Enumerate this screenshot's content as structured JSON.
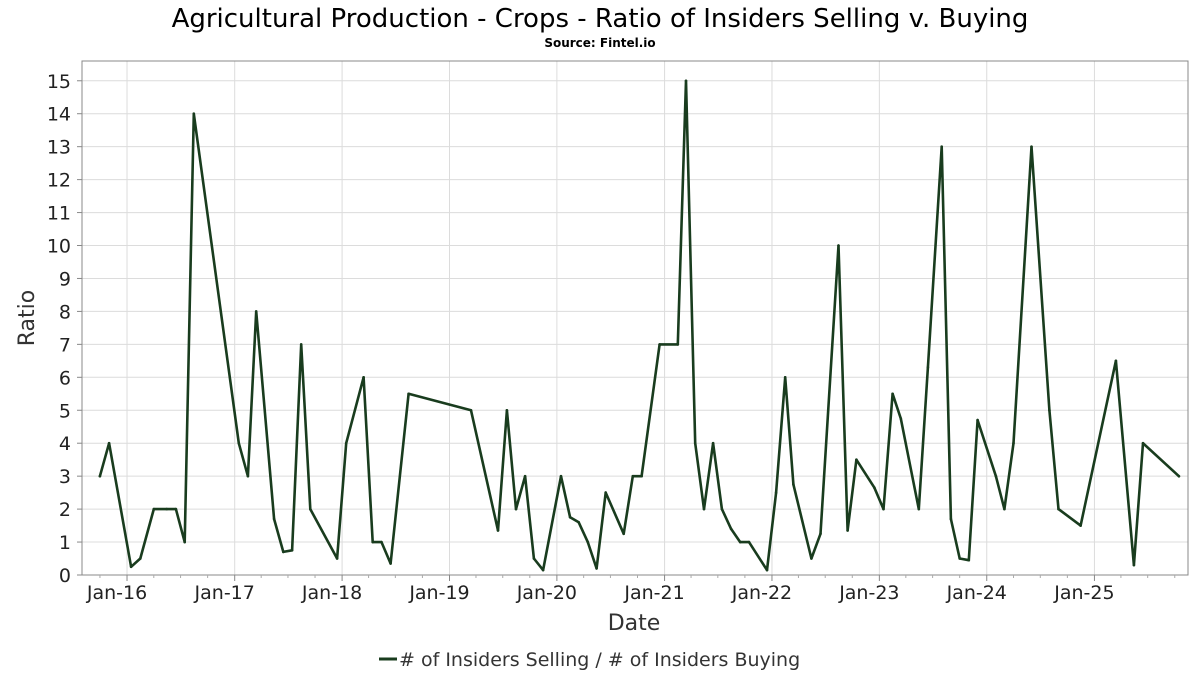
{
  "chart_data": {
    "type": "line",
    "title": "Agricultural Production - Crops - Ratio of Insiders Selling v. Buying",
    "subtitle": "Source: Fintel.io",
    "xlabel": "Date",
    "ylabel": "Ratio",
    "x_axis": {
      "type": "date",
      "range": [
        "2015-08-01",
        "2025-11-15"
      ],
      "tick_labels": [
        "Jan-16",
        "Jan-17",
        "Jan-18",
        "Jan-19",
        "Jan-20",
        "Jan-21",
        "Jan-22",
        "Jan-23",
        "Jan-24",
        "Jan-25"
      ],
      "tick_dates": [
        "2016-01-01",
        "2017-01-01",
        "2018-01-01",
        "2019-01-01",
        "2020-01-01",
        "2021-01-01",
        "2022-01-01",
        "2023-01-01",
        "2024-01-01",
        "2025-01-01"
      ]
    },
    "y_axis": {
      "range": [
        0,
        15.6
      ],
      "tick_labels": [
        "0",
        "1",
        "2",
        "3",
        "4",
        "5",
        "6",
        "7",
        "8",
        "9",
        "10",
        "11",
        "12",
        "13",
        "14",
        "15"
      ]
    },
    "grid": true,
    "legend_position": "bottom-center",
    "series": [
      {
        "name": "# of Insiders Selling / # of Insiders Buying",
        "color": "#193c1e",
        "points": [
          [
            "2015-10-01",
            3.0
          ],
          [
            "2015-11-01",
            4.0
          ],
          [
            "2016-01-15",
            0.25
          ],
          [
            "2016-02-15",
            0.5
          ],
          [
            "2016-04-01",
            2.0
          ],
          [
            "2016-05-15",
            2.0
          ],
          [
            "2016-06-15",
            2.0
          ],
          [
            "2016-07-15",
            1.0
          ],
          [
            "2016-08-15",
            14.0
          ],
          [
            "2017-01-15",
            4.0
          ],
          [
            "2017-02-15",
            3.0
          ],
          [
            "2017-03-15",
            8.0
          ],
          [
            "2017-05-15",
            1.7
          ],
          [
            "2017-06-15",
            0.7
          ],
          [
            "2017-07-15",
            0.75
          ],
          [
            "2017-08-15",
            7.0
          ],
          [
            "2017-09-15",
            2.0
          ],
          [
            "2017-12-15",
            0.5
          ],
          [
            "2018-01-15",
            4.0
          ],
          [
            "2018-03-15",
            6.0
          ],
          [
            "2018-04-15",
            1.0
          ],
          [
            "2018-05-15",
            1.0
          ],
          [
            "2018-06-15",
            0.35
          ],
          [
            "2018-08-15",
            5.5
          ],
          [
            "2019-03-15",
            5.0
          ],
          [
            "2019-06-15",
            1.35
          ],
          [
            "2019-07-15",
            5.0
          ],
          [
            "2019-08-15",
            2.0
          ],
          [
            "2019-09-15",
            3.0
          ],
          [
            "2019-10-15",
            0.5
          ],
          [
            "2019-11-15",
            0.15
          ],
          [
            "2020-01-15",
            3.0
          ],
          [
            "2020-02-15",
            1.75
          ],
          [
            "2020-03-15",
            1.6
          ],
          [
            "2020-04-15",
            1.0
          ],
          [
            "2020-05-15",
            0.2
          ],
          [
            "2020-06-15",
            2.5
          ],
          [
            "2020-08-15",
            1.25
          ],
          [
            "2020-09-15",
            3.0
          ],
          [
            "2020-10-15",
            3.0
          ],
          [
            "2020-12-15",
            7.0
          ],
          [
            "2021-02-15",
            7.0
          ],
          [
            "2021-03-15",
            15.0
          ],
          [
            "2021-04-15",
            4.0
          ],
          [
            "2021-05-15",
            2.0
          ],
          [
            "2021-06-15",
            4.0
          ],
          [
            "2021-07-15",
            2.0
          ],
          [
            "2021-08-15",
            1.4
          ],
          [
            "2021-09-15",
            1.0
          ],
          [
            "2021-10-15",
            1.0
          ],
          [
            "2021-12-15",
            0.15
          ],
          [
            "2022-01-15",
            2.5
          ],
          [
            "2022-02-15",
            6.0
          ],
          [
            "2022-03-15",
            2.75
          ],
          [
            "2022-05-15",
            0.5
          ],
          [
            "2022-06-15",
            1.25
          ],
          [
            "2022-08-15",
            10.0
          ],
          [
            "2022-09-15",
            1.35
          ],
          [
            "2022-10-15",
            3.5
          ],
          [
            "2022-12-15",
            2.65
          ],
          [
            "2023-01-15",
            2.0
          ],
          [
            "2023-02-15",
            5.5
          ],
          [
            "2023-03-15",
            4.75
          ],
          [
            "2023-05-15",
            2.0
          ],
          [
            "2023-06-15",
            6.3
          ],
          [
            "2023-08-01",
            13.0
          ],
          [
            "2023-09-01",
            1.7
          ],
          [
            "2023-10-01",
            0.5
          ],
          [
            "2023-11-01",
            0.45
          ],
          [
            "2023-12-01",
            4.7
          ],
          [
            "2024-02-01",
            3.0
          ],
          [
            "2024-03-01",
            2.0
          ],
          [
            "2024-04-01",
            4.0
          ],
          [
            "2024-06-01",
            13.0
          ],
          [
            "2024-08-01",
            5.0
          ],
          [
            "2024-09-01",
            2.0
          ],
          [
            "2024-11-15",
            1.5
          ],
          [
            "2025-03-15",
            6.5
          ],
          [
            "2025-05-15",
            0.3
          ],
          [
            "2025-06-15",
            4.0
          ],
          [
            "2025-10-15",
            3.0
          ]
        ]
      }
    ]
  }
}
